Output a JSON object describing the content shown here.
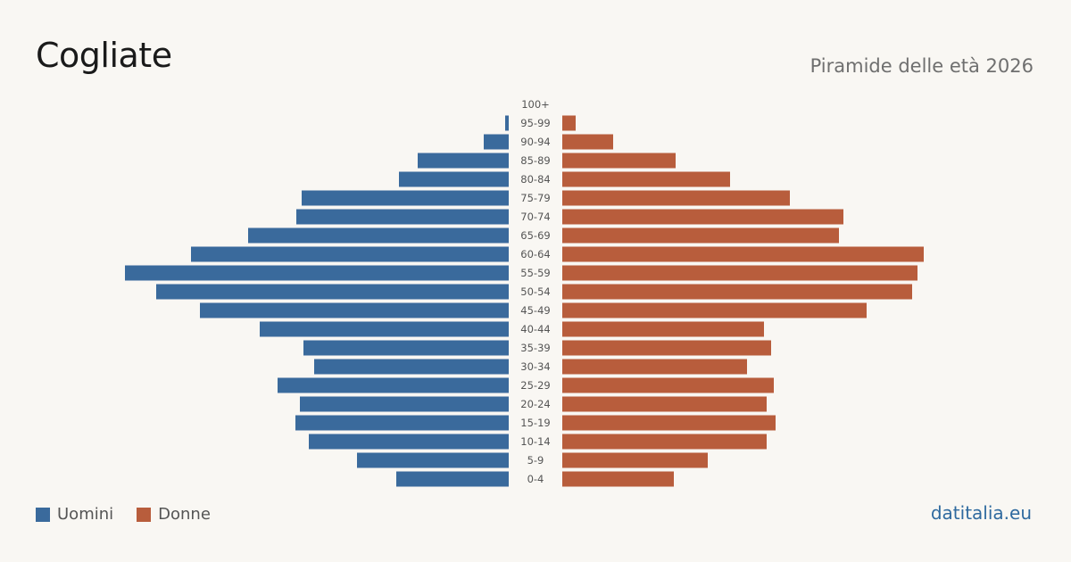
{
  "header": {
    "title": "Cogliate",
    "subtitle": "Piramide delle età 2026"
  },
  "legend": {
    "men_label": "Uomini",
    "women_label": "Donne"
  },
  "footer": {
    "source": "datitalia.eu"
  },
  "colors": {
    "men": "#3a6a9c",
    "women": "#b85d3c",
    "background": "#f9f7f3",
    "label": "#555555"
  },
  "chart_data": {
    "type": "bar",
    "orientation": "horizontal-pyramid",
    "categories": [
      "100+",
      "95-99",
      "90-94",
      "85-89",
      "80-84",
      "75-79",
      "70-74",
      "65-69",
      "60-64",
      "55-59",
      "50-54",
      "45-49",
      "40-44",
      "35-39",
      "30-34",
      "25-29",
      "20-24",
      "15-19",
      "10-14",
      "5-9",
      "0-4"
    ],
    "series": [
      {
        "name": "Uomini",
        "values": [
          0,
          4,
          28,
          102,
          123,
          232,
          238,
          292,
          356,
          430,
          395,
          346,
          279,
          230,
          218,
          259,
          234,
          239,
          224,
          170,
          126
        ]
      },
      {
        "name": "Donne",
        "values": [
          0,
          15,
          57,
          127,
          188,
          255,
          315,
          310,
          405,
          398,
          392,
          341,
          226,
          234,
          207,
          237,
          229,
          239,
          229,
          163,
          125
        ]
      }
    ],
    "xlim": [
      0,
      430
    ],
    "legend_position": "bottom-left",
    "grid": false
  }
}
